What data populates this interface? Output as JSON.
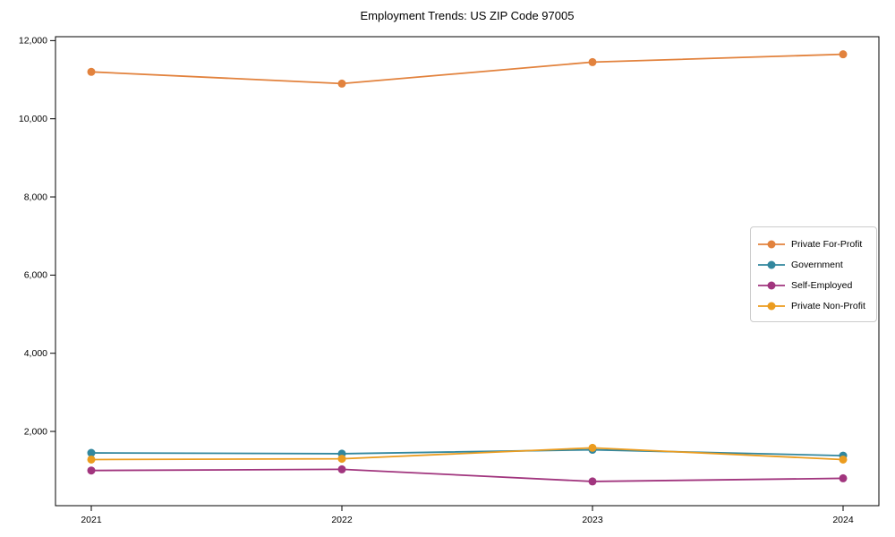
{
  "chart_data": {
    "type": "line",
    "title": "Employment Trends: US ZIP Code 97005",
    "xlabel": "",
    "ylabel": "",
    "categories": [
      "2021",
      "2022",
      "2023",
      "2024"
    ],
    "series": [
      {
        "name": "Private For-Profit",
        "color": "#E2823D",
        "values": [
          11200,
          10900,
          11450,
          11650
        ]
      },
      {
        "name": "Government",
        "color": "#32879E",
        "values": [
          1450,
          1430,
          1530,
          1380
        ]
      },
      {
        "name": "Self-Employed",
        "color": "#A1357E",
        "values": [
          1000,
          1030,
          720,
          800
        ]
      },
      {
        "name": "Private Non-Profit",
        "color": "#EB9C1F",
        "values": [
          1280,
          1300,
          1580,
          1280
        ]
      }
    ],
    "yticks": [
      2000,
      4000,
      6000,
      8000,
      10000,
      12000
    ],
    "ytick_labels": [
      "2,000",
      "4,000",
      "6,000",
      "8,000",
      "10,000",
      "12,000"
    ],
    "ylim": [
      100,
      12100
    ],
    "grid": false,
    "legend_position": "center right",
    "frame_color": "#000000",
    "background_color": "#ffffff"
  }
}
